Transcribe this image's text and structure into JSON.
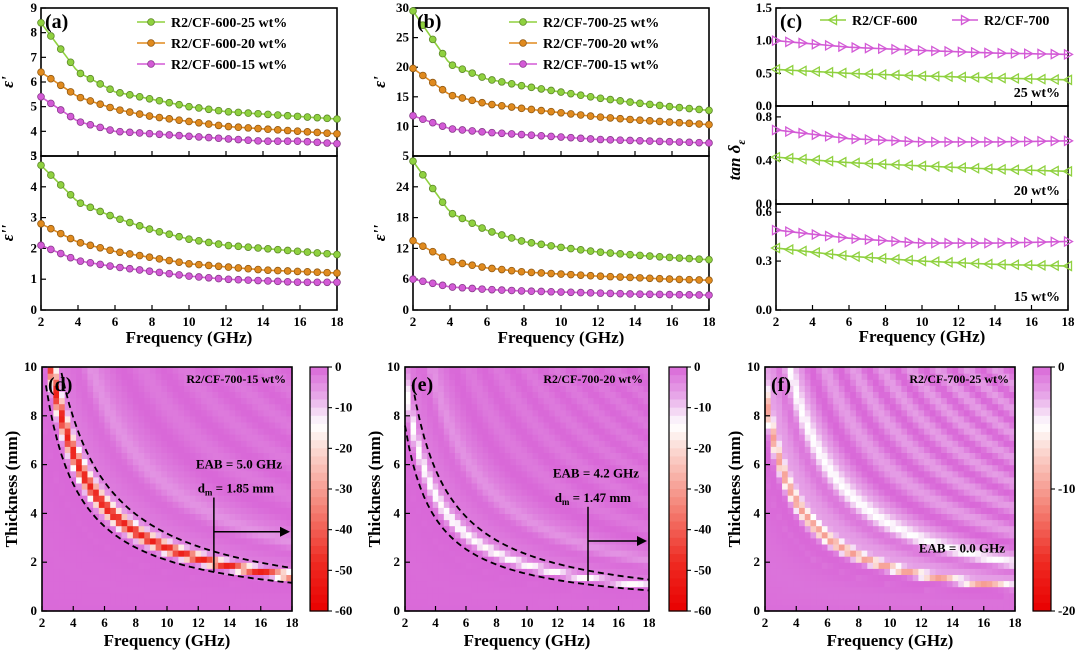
{
  "chart_data": [
    {
      "id": "a",
      "type": "line",
      "panel_label": "(a)",
      "xlabel": "Frequency (GHz)",
      "x_ticks": [
        "2",
        "4",
        "6",
        "8",
        "10",
        "12",
        "14",
        "16",
        "18"
      ],
      "xlim": [
        2,
        18
      ],
      "legend": [
        "R2/CF-600-25 wt%",
        "R2/CF-600-20 wt%",
        "R2/CF-600-15 wt%"
      ],
      "colors": [
        "#8fd13f",
        "#e08a1e",
        "#d35ad6"
      ],
      "subplots": [
        {
          "ylabel": "ε'",
          "ylim": [
            3,
            9
          ],
          "y_ticks": [
            "3",
            "4",
            "5",
            "6",
            "7",
            "8",
            "9"
          ],
          "series": [
            {
              "name": "R2/CF-600-25 wt%",
              "x": [
                2,
                4,
                6,
                8,
                10,
                12,
                14,
                16,
                18
              ],
              "values": [
                8.4,
                6.4,
                5.6,
                5.3,
                5.0,
                4.8,
                4.7,
                4.6,
                4.5
              ]
            },
            {
              "name": "R2/CF-600-20 wt%",
              "x": [
                2,
                4,
                6,
                8,
                10,
                12,
                14,
                16,
                18
              ],
              "values": [
                6.4,
                5.4,
                4.9,
                4.6,
                4.4,
                4.2,
                4.1,
                4.0,
                3.9
              ]
            },
            {
              "name": "R2/CF-600-15 wt%",
              "x": [
                2,
                4,
                6,
                8,
                10,
                12,
                14,
                16,
                18
              ],
              "values": [
                5.4,
                4.4,
                4.0,
                3.9,
                3.8,
                3.7,
                3.6,
                3.6,
                3.5
              ]
            }
          ]
        },
        {
          "ylabel": "ε''",
          "ylim": [
            0,
            5
          ],
          "y_ticks": [
            "0",
            "1",
            "2",
            "3",
            "4",
            "5"
          ],
          "series": [
            {
              "name": "R2/CF-600-25 wt%",
              "x": [
                2,
                4,
                6,
                8,
                10,
                12,
                14,
                16,
                18
              ],
              "values": [
                4.7,
                3.5,
                3.0,
                2.6,
                2.3,
                2.1,
                2.0,
                1.9,
                1.8
              ]
            },
            {
              "name": "R2/CF-600-20 wt%",
              "x": [
                2,
                4,
                6,
                8,
                10,
                12,
                14,
                16,
                18
              ],
              "values": [
                2.8,
                2.2,
                1.9,
                1.7,
                1.5,
                1.4,
                1.3,
                1.25,
                1.2
              ]
            },
            {
              "name": "R2/CF-600-15 wt%",
              "x": [
                2,
                4,
                6,
                8,
                10,
                12,
                14,
                16,
                18
              ],
              "values": [
                2.1,
                1.6,
                1.4,
                1.25,
                1.1,
                1.0,
                0.95,
                0.9,
                0.9
              ]
            }
          ]
        }
      ]
    },
    {
      "id": "b",
      "type": "line",
      "panel_label": "(b)",
      "xlabel": "Frequency (GHz)",
      "x_ticks": [
        "2",
        "4",
        "6",
        "8",
        "10",
        "12",
        "14",
        "16",
        "18"
      ],
      "xlim": [
        2,
        18
      ],
      "legend": [
        "R2/CF-700-25 wt%",
        "R2/CF-700-20 wt%",
        "R2/CF-700-15 wt%"
      ],
      "colors": [
        "#8fd13f",
        "#e08a1e",
        "#d35ad6"
      ],
      "subplots": [
        {
          "ylabel": "ε'",
          "ylim": [
            5,
            30
          ],
          "y_ticks": [
            "5",
            "10",
            "15",
            "20",
            "25",
            "30"
          ],
          "series": [
            {
              "name": "R2/CF-700-25 wt%",
              "x": [
                2,
                4,
                6,
                8,
                10,
                12,
                14,
                16,
                18
              ],
              "values": [
                29.5,
                20.5,
                18.0,
                16.8,
                15.8,
                14.8,
                14.0,
                13.3,
                12.7
              ]
            },
            {
              "name": "R2/CF-700-20 wt%",
              "x": [
                2,
                4,
                6,
                8,
                10,
                12,
                14,
                16,
                18
              ],
              "values": [
                19.8,
                15.3,
                13.8,
                13.0,
                12.3,
                11.6,
                11.1,
                10.7,
                10.3
              ]
            },
            {
              "name": "R2/CF-700-15 wt%",
              "x": [
                2,
                4,
                6,
                8,
                10,
                12,
                14,
                16,
                18
              ],
              "values": [
                11.8,
                9.6,
                9.0,
                8.6,
                8.2,
                7.8,
                7.6,
                7.4,
                7.2
              ]
            }
          ]
        },
        {
          "ylabel": "ε''",
          "ylim": [
            0,
            30
          ],
          "y_ticks": [
            "0",
            "6",
            "12",
            "18",
            "24"
          ],
          "series": [
            {
              "name": "R2/CF-700-25 wt%",
              "x": [
                2,
                4,
                6,
                8,
                10,
                12,
                14,
                16,
                18
              ],
              "values": [
                29.0,
                19.0,
                15.5,
                13.3,
                12.2,
                11.3,
                10.7,
                10.2,
                9.8
              ]
            },
            {
              "name": "R2/CF-700-20 wt%",
              "x": [
                2,
                4,
                6,
                8,
                10,
                12,
                14,
                16,
                18
              ],
              "values": [
                13.5,
                9.5,
                8.2,
                7.4,
                7.0,
                6.6,
                6.3,
                6.0,
                5.8
              ]
            },
            {
              "name": "R2/CF-700-15 wt%",
              "x": [
                2,
                4,
                6,
                8,
                10,
                12,
                14,
                16,
                18
              ],
              "values": [
                6.0,
                4.5,
                4.0,
                3.7,
                3.5,
                3.3,
                3.1,
                3.0,
                2.9
              ]
            }
          ]
        }
      ]
    },
    {
      "id": "c",
      "type": "line",
      "panel_label": "(c)",
      "xlabel": "Frequency (GHz)",
      "ylabel": "tan δ",
      "ylabel_sub": "ε",
      "x_ticks": [
        "2",
        "4",
        "6",
        "8",
        "10",
        "12",
        "14",
        "16",
        "18"
      ],
      "xlim": [
        2,
        18
      ],
      "legend": [
        "R2/CF-600",
        "R2/CF-700"
      ],
      "colors": [
        "#8fd13f",
        "#d35ad6"
      ],
      "subplots": [
        {
          "label": "25 wt%",
          "ylim": [
            0,
            1.5
          ],
          "y_ticks": [
            "0.0",
            "0.5",
            "1.0",
            "1.5"
          ],
          "series": [
            {
              "name": "R2/CF-600",
              "x": [
                2,
                6,
                10,
                14,
                18
              ],
              "values": [
                0.56,
                0.5,
                0.46,
                0.43,
                0.4
              ]
            },
            {
              "name": "R2/CF-700",
              "x": [
                2,
                6,
                10,
                14,
                18
              ],
              "values": [
                1.0,
                0.9,
                0.85,
                0.81,
                0.79
              ]
            }
          ]
        },
        {
          "label": "20 wt%",
          "ylim": [
            0,
            0.9
          ],
          "y_ticks": [
            "0.0",
            "0.4",
            "0.8"
          ],
          "series": [
            {
              "name": "R2/CF-600",
              "x": [
                2,
                6,
                10,
                14,
                18
              ],
              "values": [
                0.43,
                0.38,
                0.35,
                0.32,
                0.3
              ]
            },
            {
              "name": "R2/CF-700",
              "x": [
                2,
                6,
                10,
                14,
                18
              ],
              "values": [
                0.68,
                0.6,
                0.57,
                0.57,
                0.58
              ]
            }
          ]
        },
        {
          "label": "15 wt%",
          "ylim": [
            0,
            0.65
          ],
          "y_ticks": [
            "0.0",
            "0.3",
            "0.6"
          ],
          "series": [
            {
              "name": "R2/CF-600",
              "x": [
                2,
                6,
                10,
                14,
                18
              ],
              "values": [
                0.38,
                0.33,
                0.3,
                0.28,
                0.27
              ]
            },
            {
              "name": "R2/CF-700",
              "x": [
                2,
                6,
                10,
                14,
                18
              ],
              "values": [
                0.49,
                0.44,
                0.41,
                0.41,
                0.42
              ]
            }
          ]
        }
      ]
    },
    {
      "id": "d",
      "type": "heatmap",
      "panel_label": "(d)",
      "title": "R2/CF-700-15 wt%",
      "xlabel": "Frequency (GHz)",
      "ylabel": "Thickness (mm)",
      "xlim": [
        2,
        18
      ],
      "ylim": [
        0,
        10
      ],
      "x_ticks": [
        "2",
        "4",
        "6",
        "8",
        "10",
        "12",
        "14",
        "16",
        "18"
      ],
      "y_ticks": [
        "0",
        "2",
        "4",
        "6",
        "8",
        "10"
      ],
      "colorbar": {
        "range": [
          -60,
          0
        ],
        "ticks": [
          "0",
          "-10",
          "-20",
          "-30",
          "-40",
          "-50",
          "-60"
        ]
      },
      "ridge_k": 26,
      "ridge_depth": -50,
      "eab_lines": [
        "EAB = 5.0 GHz",
        "d",
        "m",
        " = 1.85 mm"
      ],
      "eab_marker": {
        "x": 13,
        "thickness": 1.85
      }
    },
    {
      "id": "e",
      "type": "heatmap",
      "panel_label": "(e)",
      "title": "R2/CF-700-20 wt%",
      "xlabel": "Frequency (GHz)",
      "ylabel": "Thickness (mm)",
      "xlim": [
        2,
        18
      ],
      "ylim": [
        0,
        10
      ],
      "x_ticks": [
        "2",
        "4",
        "6",
        "8",
        "10",
        "12",
        "14",
        "16",
        "18"
      ],
      "y_ticks": [
        "0",
        "2",
        "4",
        "6",
        "8",
        "10"
      ],
      "colorbar": {
        "range": [
          -60,
          0
        ],
        "ticks": [
          "0",
          "-10",
          "-20",
          "-30",
          "-40",
          "-50",
          "-60"
        ]
      },
      "ridge_k": 19,
      "ridge_depth": -14,
      "eab_lines": [
        "EAB = 4.2 GHz",
        "d",
        "m",
        " = 1.47 mm"
      ],
      "eab_marker": {
        "x": 14,
        "thickness": 1.47
      }
    },
    {
      "id": "f",
      "type": "heatmap",
      "panel_label": "(f)",
      "title": "R2/CF-700-25 wt%",
      "xlabel": "Frequency (GHz)",
      "ylabel": "Thickness (mm)",
      "xlim": [
        2,
        18
      ],
      "ylim": [
        0,
        10
      ],
      "x_ticks": [
        "2",
        "4",
        "6",
        "8",
        "10",
        "12",
        "14",
        "16",
        "18"
      ],
      "y_ticks": [
        "0",
        "2",
        "4",
        "6",
        "8",
        "10"
      ],
      "colorbar": {
        "range": [
          -20,
          0
        ],
        "ticks": [
          "0",
          "-10",
          "-20"
        ]
      },
      "ridge_k": 18,
      "ridge_depth": -9,
      "eab_lines": [
        "EAB = 0.0 GHz"
      ]
    }
  ]
}
